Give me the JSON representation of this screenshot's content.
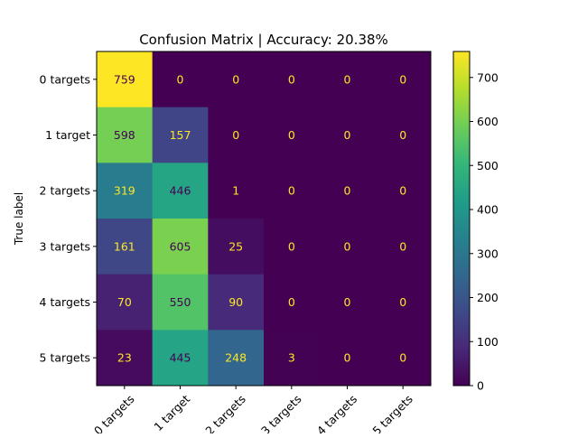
{
  "chart_data": {
    "type": "heatmap",
    "title": "Confusion Matrix | Accuracy: 20.38%",
    "ylabel": "True label",
    "xlabel": "",
    "row_labels": [
      "0 targets",
      "1 target",
      "2 targets",
      "3 targets",
      "4 targets",
      "5 targets"
    ],
    "col_labels": [
      "0 targets",
      "1 target",
      "2 targets",
      "3 targets",
      "4 targets",
      "5 targets"
    ],
    "values": [
      [
        759,
        0,
        0,
        0,
        0,
        0
      ],
      [
        598,
        157,
        0,
        0,
        0,
        0
      ],
      [
        319,
        446,
        1,
        0,
        0,
        0
      ],
      [
        161,
        605,
        25,
        0,
        0,
        0
      ],
      [
        70,
        550,
        90,
        0,
        0,
        0
      ],
      [
        23,
        445,
        248,
        3,
        0,
        0
      ]
    ],
    "colorscale": "viridis",
    "vmin": 0,
    "vmax": 759,
    "colorbar_ticks": [
      0,
      100,
      200,
      300,
      400,
      500,
      600,
      700
    ],
    "label_colors": {
      "on_dark": "#fde725",
      "on_light": "#440154"
    }
  }
}
